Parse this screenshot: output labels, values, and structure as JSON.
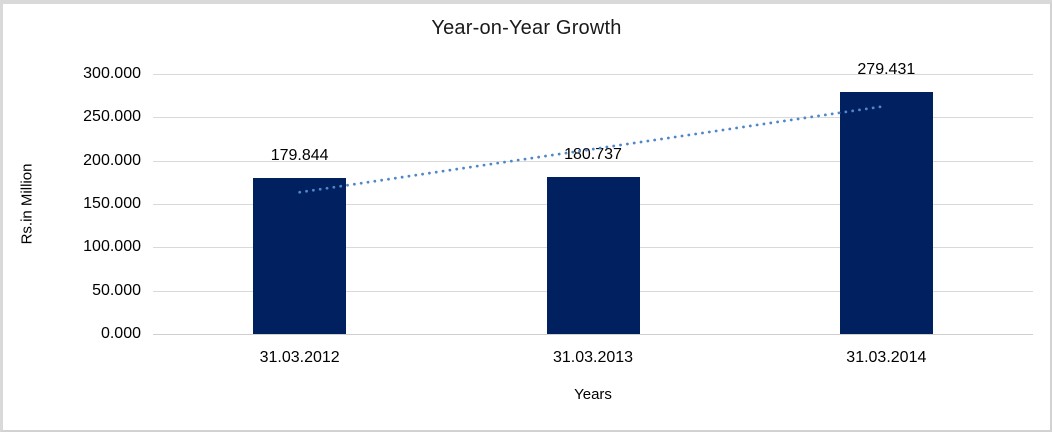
{
  "chart_data": {
    "type": "bar",
    "title": "Year-on-Year Growth",
    "xlabel": "Years",
    "ylabel": "Rs.in Million",
    "categories": [
      "31.03.2012",
      "31.03.2013",
      "31.03.2014"
    ],
    "values": [
      179.844,
      180.737,
      279.431
    ],
    "data_labels": [
      "179.844",
      "180.737",
      "279.431"
    ],
    "yticks": [
      "300.000",
      "250.000",
      "200.000",
      "150.000",
      "100.000",
      "50.000",
      "0.000"
    ],
    "ylim": [
      0,
      300
    ],
    "ytick_step": 50,
    "grid": true,
    "legend": false,
    "bar_color": "#002060",
    "gridline_color": "#d9d9d9",
    "trendline": {
      "type": "linear",
      "style": "dotted",
      "color": "#5087c8"
    }
  }
}
